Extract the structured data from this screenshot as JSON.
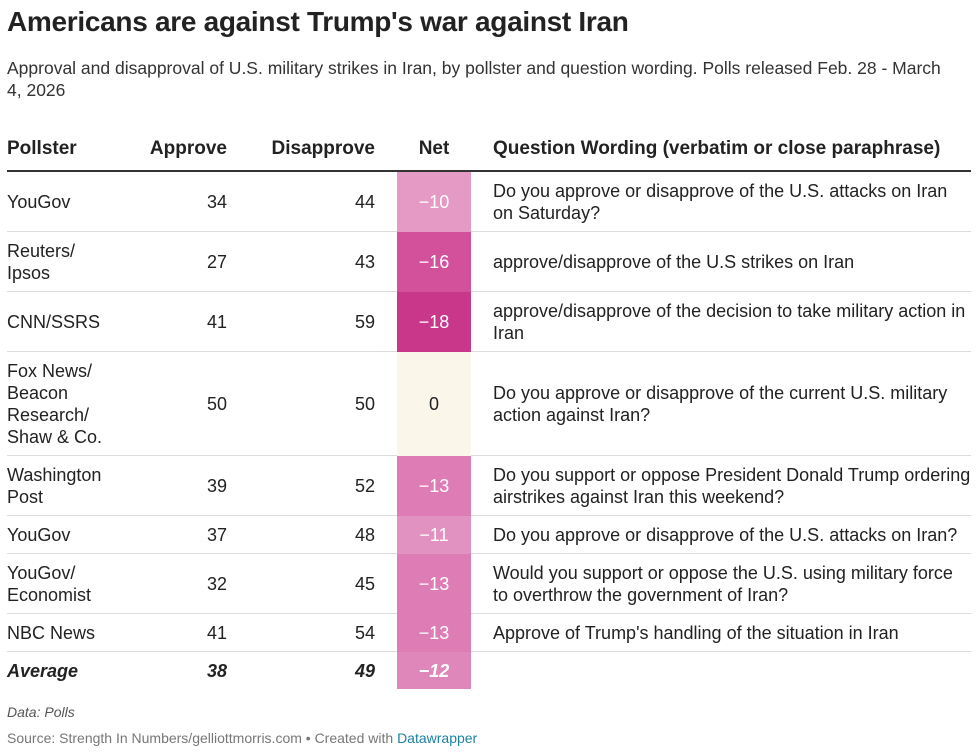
{
  "header": {
    "title": "Americans are against Trump's war against Iran",
    "subtitle": "Approval and disapproval of U.S. military strikes in Iran, by pollster and question wording. Polls released Feb. 28 - March 4, 2026"
  },
  "table": {
    "columns": [
      "Pollster",
      "Approve",
      "Disapprove",
      "Net",
      "Question Wording (verbatim or close paraphrase)"
    ],
    "rows": [
      [
        "YouGov",
        "34",
        "44",
        "−10",
        "Do you approve or disapprove of the U.S. attacks on Iran on Saturday?"
      ],
      [
        "Reuters/ Ipsos",
        "27",
        "43",
        "−16",
        "approve/disapprove of the U.S strikes on Iran"
      ],
      [
        "CNN/SSRS",
        "41",
        "59",
        "−18",
        "approve/disapprove of the decision to take military action in Iran"
      ],
      [
        "Fox News/ Beacon Research/ Shaw & Co.",
        "50",
        "50",
        "0",
        "Do you approve or disapprove of the current U.S. military action against Iran?"
      ],
      [
        "Washington Post",
        "39",
        "52",
        "−13",
        "Do you support or oppose President Donald Trump ordering airstrikes against Iran this weekend?"
      ],
      [
        "YouGov",
        "37",
        "48",
        "−11",
        "Do you approve or disapprove of the U.S. attacks on Iran?"
      ],
      [
        "YouGov/ Economist",
        "32",
        "45",
        "−13",
        "Would you support or oppose the U.S. using military force to overthrow the government of Iran?"
      ],
      [
        "NBC News",
        "41",
        "54",
        "−13",
        "Approve of Trump's handling of the situation in Iran"
      ]
    ],
    "net_colors": [
      "#e59ac5",
      "#d3519a",
      "#c9378a",
      "#faf6ea",
      "#de7db5",
      "#e292c1",
      "#de7db5",
      "#de7db5"
    ],
    "average": {
      "label": "Average",
      "approve": "38",
      "disapprove": "49",
      "net": "−12",
      "net_color": "#df86ba"
    }
  },
  "footer": {
    "note": "Data: Polls",
    "source": "Source: Strength In Numbers/gelliottmorris.com • Created with",
    "link": "Datawrapper"
  }
}
